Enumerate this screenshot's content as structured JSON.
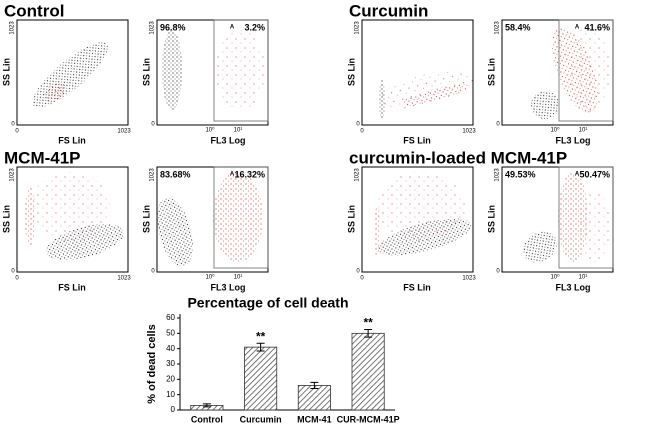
{
  "figure": {
    "panels": [
      {
        "title": "Control",
        "y_label": "SS Lin",
        "x_label": "FS Lin",
        "fl_y_label": "SS Lin",
        "fl_x_label": "FL3 Log",
        "y_ticks": [
          "1023",
          "0"
        ],
        "x_ticks": [
          "0",
          "1023"
        ],
        "fl_y_ticks": [
          "1023",
          "0"
        ],
        "fl_x_ticks": [
          "10⁰",
          "10¹"
        ],
        "gate": "A",
        "left_percent": "96.8%",
        "right_percent": "3.2%"
      },
      {
        "title": "Curcumin",
        "y_label": "SS Lin",
        "x_label": "FS Lin",
        "fl_y_label": "SS Lin",
        "fl_x_label": "FL3 Log",
        "y_ticks": [
          "1023",
          "0"
        ],
        "x_ticks": [
          "0",
          "1023"
        ],
        "fl_y_ticks": [
          "1023",
          "0"
        ],
        "fl_x_ticks": [
          "10⁰",
          "10¹"
        ],
        "gate": "A",
        "left_percent": "58.4%",
        "right_percent": "41.6%"
      },
      {
        "title": "MCM-41P",
        "y_label": "SS Lin",
        "x_label": "FS Lin",
        "fl_y_label": "SS Lin",
        "fl_x_label": "FL3 Log",
        "y_ticks": [
          "1023",
          "0"
        ],
        "x_ticks": [
          "0",
          "1023"
        ],
        "fl_y_ticks": [
          "1023",
          "0"
        ],
        "fl_x_ticks": [
          "10⁰",
          "10¹"
        ],
        "gate": "A",
        "left_percent": "83.68%",
        "right_percent": "16.32%"
      },
      {
        "title": "curcumin-loaded MCM-41P",
        "y_label": "SS Lin",
        "x_label": "FS Lin",
        "fl_y_label": "SS Lin",
        "fl_x_label": "FL3 Log",
        "y_ticks": [
          "1023",
          "0"
        ],
        "x_ticks": [
          "0",
          "1023"
        ],
        "fl_y_ticks": [
          "1023",
          "0"
        ],
        "fl_x_ticks": [
          "10⁰",
          "10¹"
        ],
        "gate": "A",
        "left_percent": "49.53%",
        "right_percent": "50.47%"
      }
    ]
  },
  "chart_data": {
    "type": "bar",
    "title": "Percentage of cell death",
    "y_label": "% of dead cells",
    "categories": [
      "Control",
      "Curcumin",
      "MCM-41",
      "CUR-MCM-41P"
    ],
    "values": [
      3,
      41,
      16,
      50
    ],
    "errors": [
      1,
      2.5,
      2,
      2.5
    ],
    "value_annotations": [
      null,
      "**",
      null,
      "**"
    ],
    "color": "#999999",
    "ylim": [
      0,
      60
    ],
    "yticks": [
      0,
      10,
      20,
      30,
      40,
      50,
      60
    ]
  }
}
